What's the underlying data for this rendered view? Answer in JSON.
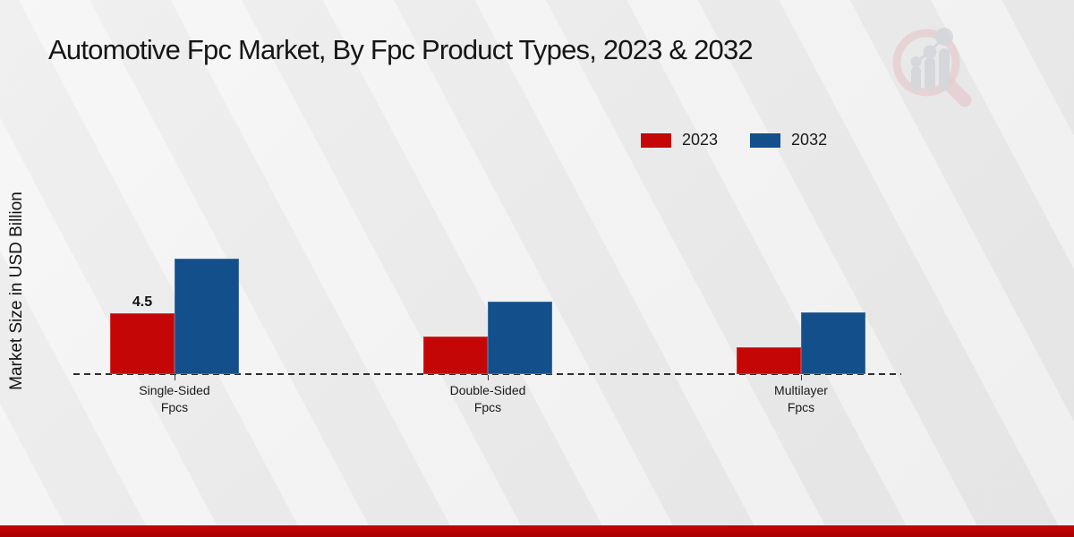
{
  "page": {
    "title": "Automotive Fpc Market, By Fpc Product Types, 2023 & 2032"
  },
  "watermark": {
    "icon": "magnifier-bar-chart-logo",
    "ring_color": "#e3b6ba",
    "bars_color": "#c7cad2"
  },
  "chart_data": {
    "type": "bar",
    "title": "Automotive Fpc Market, By Fpc Product Types, 2023 & 2032",
    "xlabel": "",
    "ylabel": "Market Size in USD Billion",
    "categories": [
      "Single-Sided Fpcs",
      "Double-Sided Fpcs",
      "Multilayer Fpcs"
    ],
    "category_lines": [
      [
        "Single-Sided",
        "Fpcs"
      ],
      [
        "Double-Sided",
        "Fpcs"
      ],
      [
        "Multilayer",
        "Fpcs"
      ]
    ],
    "series": [
      {
        "name": "2023",
        "color": "#c50606",
        "values": [
          4.5,
          2.8,
          2.0
        ]
      },
      {
        "name": "2032",
        "color": "#134f8b",
        "values": [
          8.6,
          5.4,
          4.6
        ]
      }
    ],
    "bar_labels": [
      {
        "series": 0,
        "category": 0,
        "text": "4.5"
      }
    ],
    "ylim": [
      0,
      10
    ],
    "grid": false,
    "axis_line_style": "dashed",
    "legend_position": "top-right"
  },
  "colors": {
    "accent_red": "#c50606",
    "accent_blue": "#134f8b",
    "footer_red": "#c50505",
    "axis": "#2e2e2e",
    "text": "#161616"
  }
}
